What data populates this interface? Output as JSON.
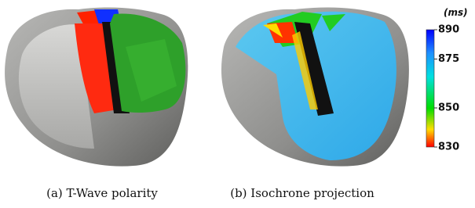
{
  "figure": {
    "panels": [
      {
        "caption": "(a) T-Wave polarity"
      },
      {
        "caption": "(b) Isochrone projection"
      }
    ],
    "colorbar": {
      "unit": "(ms)",
      "ticks": [
        890,
        875,
        850,
        830
      ]
    }
  }
}
